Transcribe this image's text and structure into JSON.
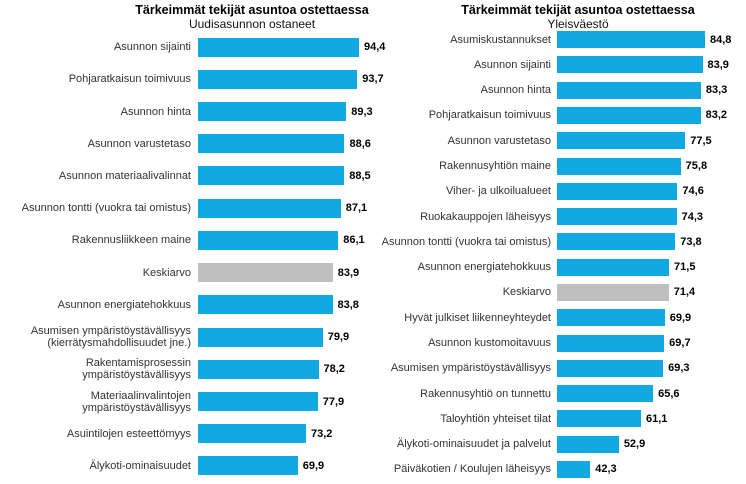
{
  "colors": {
    "bar": "#12A9E3",
    "average_bar": "#BFBFBF",
    "label_text": "#333333",
    "value_text": "#000000",
    "background": "#FFFFFF"
  },
  "chart_data": [
    {
      "type": "bar",
      "orientation": "horizontal",
      "title": "Tärkeimmät tekijät asuntoa ostettaessa",
      "subtitle": "Uudisasunnon ostaneet",
      "categories": [
        "Asunnon sijainti",
        "Pohjaratkaisun toimivuus",
        "Asunnon hinta",
        "Asunnon varustetaso",
        "Asunnon materiaalivalinnat",
        "Asunnon tontti (vuokra tai omistus)",
        "Rakennusliikkeen maine",
        "Keskiarvo",
        "Asunnon energiatehokkuus",
        "Asumisen ympäristöystävällisyys (kierrätysmahdollisuudet jne.)",
        "Rakentamisprosessin ympäristöystävällisyys",
        "Materiaalinvalintojen ympäristöystävällisyys",
        "Asuintilojen esteettömyys",
        "Älykoti-ominaisuudet"
      ],
      "values": [
        94.4,
        93.7,
        89.3,
        88.6,
        88.5,
        87.1,
        86.1,
        83.9,
        83.8,
        79.9,
        78.2,
        77.9,
        73.2,
        69.9
      ],
      "value_labels": [
        "94,4",
        "93,7",
        "89,3",
        "88,6",
        "88,5",
        "87,1",
        "86,1",
        "83,9",
        "83,8",
        "79,9",
        "78,2",
        "77,9",
        "73,2",
        "69,9"
      ],
      "highlight_category": "Keskiarvo",
      "xlim": [
        30,
        100
      ],
      "grid": false,
      "legend": false,
      "data_labels": true
    },
    {
      "type": "bar",
      "orientation": "horizontal",
      "title": "Tärkeimmät tekijät asuntoa ostettaessa",
      "subtitle": "Yleisväestö",
      "categories": [
        "Asumiskustannukset",
        "Asunnon sijainti",
        "Asunnon hinta",
        "Pohjaratkaisun toimivuus",
        "Asunnon varustetaso",
        "Rakennusyhtiön maine",
        "Viher- ja ulkoilualueet",
        "Ruokakauppojen läheisyys",
        "Asunnon tontti (vuokra tai omistus)",
        "Asunnon energiatehokkuus",
        "Keskiarvo",
        "Hyvät julkiset liikenneyhteydet",
        "Asunnon kustomoitavuus",
        "Asumisen ympäristöystävällisyys",
        "Rakennusyhtiö on tunnettu",
        "Taloyhtiön yhteiset tilat",
        "Älykoti-ominaisuudet ja palvelut",
        "Päiväkotien / Koulujen läheisyys"
      ],
      "values": [
        84.8,
        83.9,
        83.3,
        83.2,
        77.5,
        75.8,
        74.6,
        74.3,
        73.8,
        71.5,
        71.4,
        69.9,
        69.7,
        69.3,
        65.6,
        61.1,
        52.9,
        42.3
      ],
      "value_labels": [
        "84,8",
        "83,9",
        "83,3",
        "83,2",
        "77,5",
        "75,8",
        "74,6",
        "74,3",
        "73,8",
        "71,5",
        "71,4",
        "69,9",
        "69,7",
        "69,3",
        "65,6",
        "61,1",
        "52,9",
        "42,3"
      ],
      "highlight_category": "Keskiarvo",
      "xlim": [
        30,
        100
      ],
      "grid": false,
      "legend": false,
      "data_labels": true
    }
  ]
}
